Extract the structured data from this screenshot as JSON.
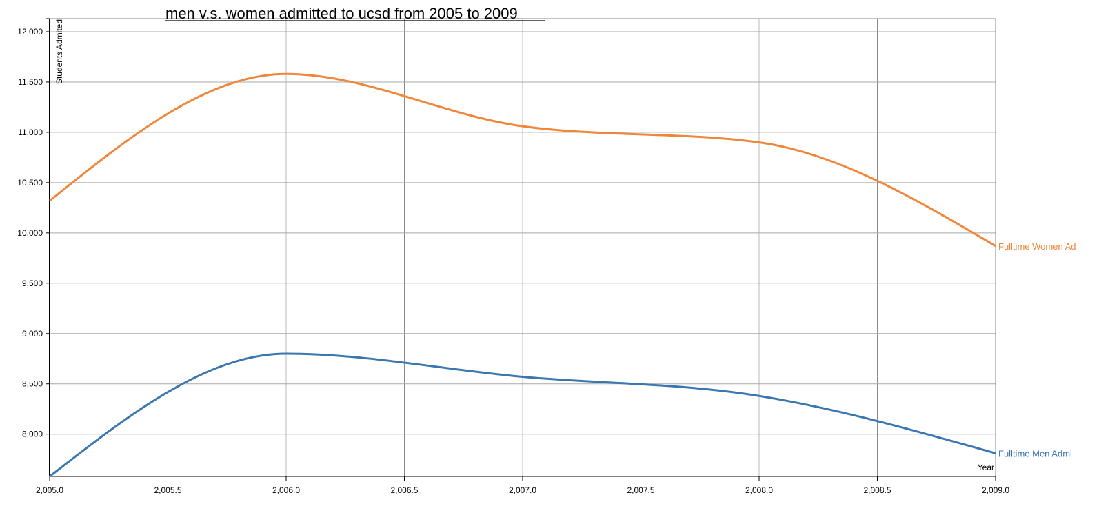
{
  "chart_data": {
    "type": "line",
    "title": "men v.s. women admitted to ucsd from 2005 to 2009",
    "xlabel": "Year",
    "ylabel": "Students Admited",
    "xlim": [
      2005.0,
      2009.0
    ],
    "ylim": [
      7580,
      12130
    ],
    "x_ticks": [
      2005.0,
      2005.5,
      2006.0,
      2006.5,
      2007.0,
      2007.5,
      2008.0,
      2008.5,
      2009.0
    ],
    "x_tick_labels": [
      "2,005.0",
      "2,005.5",
      "2,006.0",
      "2,006.5",
      "2,007.0",
      "2,007.5",
      "2,008.0",
      "2,008.5",
      "2,009.0"
    ],
    "y_ticks": [
      8000,
      8500,
      9000,
      9500,
      10000,
      10500,
      11000,
      11500,
      12000
    ],
    "y_tick_labels": [
      "8,000",
      "8,500",
      "9,000",
      "9,500",
      "10,000",
      "10,500",
      "11,000",
      "11,500",
      "12,000"
    ],
    "grid": true,
    "x": [
      2005,
      2006,
      2007,
      2008,
      2009
    ],
    "series": [
      {
        "name": "Fulltime Women Admitted",
        "display_label": "Fulltime Women Ad",
        "color": "#f0863a",
        "values": [
          10320,
          11580,
          11060,
          10900,
          9870
        ]
      },
      {
        "name": "Fulltime Men Admitted",
        "display_label": "Fulltime Men Admi",
        "color": "#3a77b0",
        "values": [
          7580,
          8800,
          8570,
          8380,
          7810
        ]
      }
    ]
  }
}
